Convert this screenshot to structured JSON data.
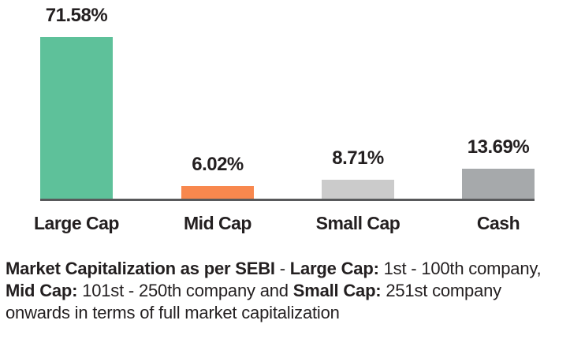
{
  "chart_data": {
    "type": "bar",
    "categories": [
      "Large Cap",
      "Mid Cap",
      "Small Cap",
      "Cash"
    ],
    "values": [
      71.58,
      6.02,
      8.71,
      13.69
    ],
    "value_labels": [
      "71.58%",
      "6.02%",
      "8.71%",
      "13.69%"
    ],
    "bar_colors": [
      "#5ec19a",
      "#f8884e",
      "#cbcbcb",
      "#a6a9ab"
    ],
    "title": "",
    "xlabel": "",
    "ylabel": "",
    "ylim": [
      0,
      80
    ],
    "grid": false,
    "legend": false,
    "axis_line_color": "#58595b",
    "label_color": "#231f20"
  },
  "description": {
    "segments": [
      {
        "text": "Market Capitalization as per SEBI",
        "bold": true
      },
      {
        "text": " - ",
        "bold": false
      },
      {
        "text": "Large Cap:",
        "bold": true
      },
      {
        "text": " 1st - 100th company, ",
        "bold": false
      },
      {
        "text": "Mid Cap:",
        "bold": true
      },
      {
        "text": " 101st - 250th company and ",
        "bold": false
      },
      {
        "text": "Small Cap:",
        "bold": true
      },
      {
        "text": " 251st company onwards in terms of full market capitalization",
        "bold": false
      }
    ]
  },
  "colors": {
    "background": "#ffffff",
    "text": "#231f20"
  }
}
